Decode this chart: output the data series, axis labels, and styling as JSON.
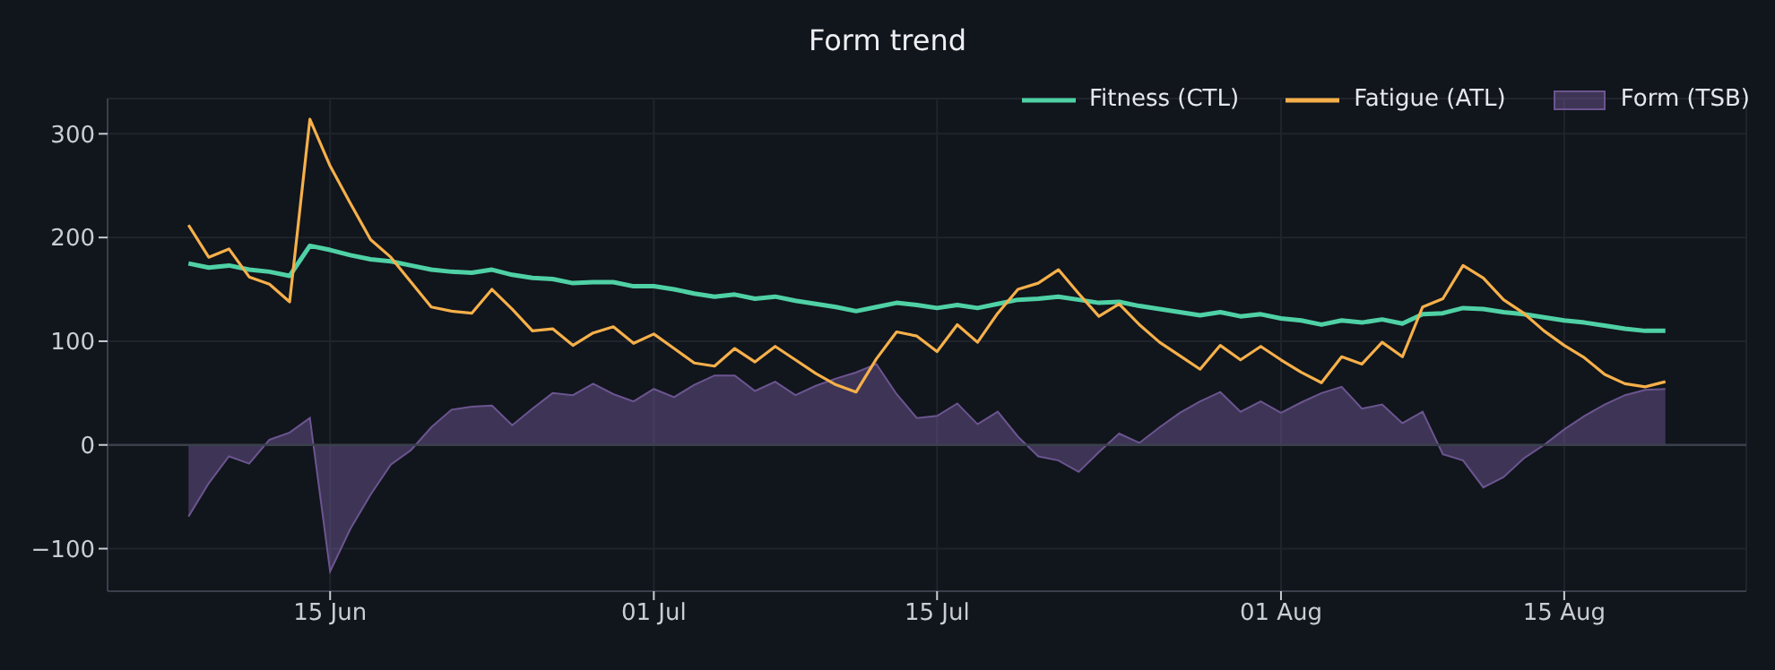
{
  "chart_data": {
    "type": "line",
    "title": "Form trend",
    "x": [
      "--06-08",
      "--06-09",
      "--06-10",
      "--06-11",
      "--06-12",
      "--06-13",
      "--06-14",
      "--06-15",
      "--06-16",
      "--06-17",
      "--06-18",
      "--06-19",
      "--06-20",
      "--06-21",
      "--06-22",
      "--06-23",
      "--06-24",
      "--06-25",
      "--06-26",
      "--06-27",
      "--06-28",
      "--06-29",
      "--06-30",
      "--07-01",
      "--07-02",
      "--07-03",
      "--07-04",
      "--07-05",
      "--07-06",
      "--07-07",
      "--07-08",
      "--07-09",
      "--07-10",
      "--07-11",
      "--07-12",
      "--07-13",
      "--07-14",
      "--07-15",
      "--07-16",
      "--07-17",
      "--07-18",
      "--07-19",
      "--07-20",
      "--07-21",
      "--07-22",
      "--07-23",
      "--07-24",
      "--07-25",
      "--07-26",
      "--07-27",
      "--07-28",
      "--07-29",
      "--07-30",
      "--07-31",
      "--08-01",
      "--08-02",
      "--08-03",
      "--08-04",
      "--08-05",
      "--08-06",
      "--08-07",
      "--08-08",
      "--08-09",
      "--08-10",
      "--08-11",
      "--08-12",
      "--08-13",
      "--08-14",
      "--08-15",
      "--08-16",
      "--08-17",
      "--08-18",
      "--08-19",
      "--08-20"
    ],
    "series": [
      {
        "name": "Fitness (CTL)",
        "color": "#4fd1a5",
        "values": [
          175,
          171,
          173,
          169,
          167,
          163,
          192,
          188,
          183,
          179,
          177,
          173,
          169,
          167,
          166,
          169,
          164,
          161,
          160,
          156,
          157,
          157,
          153,
          153,
          150,
          146,
          143,
          145,
          141,
          143,
          139,
          136,
          133,
          129,
          133,
          137,
          135,
          132,
          135,
          132,
          136,
          140,
          141,
          143,
          140,
          137,
          138,
          134,
          131,
          128,
          125,
          128,
          124,
          126,
          122,
          120,
          116,
          120,
          118,
          121,
          117,
          126,
          127,
          132,
          131,
          128,
          126,
          123,
          120,
          118,
          115,
          112,
          110,
          110
        ]
      },
      {
        "name": "Fatigue (ATL)",
        "color": "#f6b04a",
        "values": [
          212,
          181,
          189,
          162,
          155,
          138,
          314,
          269,
          233,
          198,
          181,
          157,
          133,
          129,
          127,
          150,
          131,
          110,
          112,
          96,
          108,
          114,
          98,
          107,
          93,
          79,
          76,
          93,
          80,
          95,
          82,
          69,
          58,
          51,
          83,
          109,
          105,
          90,
          116,
          99,
          127,
          150,
          156,
          169,
          146,
          124,
          136,
          116,
          99,
          86,
          73,
          96,
          82,
          95,
          82,
          70,
          60,
          85,
          78,
          99,
          85,
          133,
          141,
          173,
          161,
          140,
          127,
          110,
          96,
          84,
          68,
          59,
          56,
          61
        ]
      },
      {
        "name": "Form (TSB)",
        "type": "area",
        "color": "#6b5590",
        "values": [
          -69,
          -37,
          -11,
          -18,
          5,
          12,
          26,
          -122,
          -81,
          -48,
          -19,
          -5,
          17,
          34,
          37,
          38,
          19,
          35,
          50,
          48,
          59,
          49,
          42,
          54,
          46,
          58,
          67,
          67,
          52,
          61,
          48,
          57,
          64,
          70,
          78,
          49,
          26,
          28,
          40,
          20,
          32,
          8,
          -11,
          -15,
          -26,
          -7,
          11,
          2,
          17,
          31,
          42,
          51,
          32,
          42,
          31,
          41,
          50,
          56,
          35,
          39,
          21,
          32,
          -9,
          -15,
          -41,
          -31,
          -13,
          0,
          15,
          28,
          39,
          48,
          53,
          54
        ]
      }
    ],
    "xlim": [
      "--06-04",
      "--08-24"
    ],
    "xticks": [
      {
        "value": "--06-15",
        "label": "15 Jun"
      },
      {
        "value": "--07-01",
        "label": "01 Jul"
      },
      {
        "value": "--07-15",
        "label": "15 Jul"
      },
      {
        "value": "--08-01",
        "label": "01 Aug"
      },
      {
        "value": "--08-15",
        "label": "15 Aug"
      }
    ],
    "ylim": [
      -141,
      334
    ],
    "yticks": [
      -100,
      0,
      100,
      200,
      300
    ],
    "ref_lines": [
      {
        "axis": "y",
        "value": 0,
        "color": "#3a3f4c"
      }
    ],
    "grid": true,
    "legend": "top right",
    "marker": "none",
    "line_style": "solid"
  }
}
